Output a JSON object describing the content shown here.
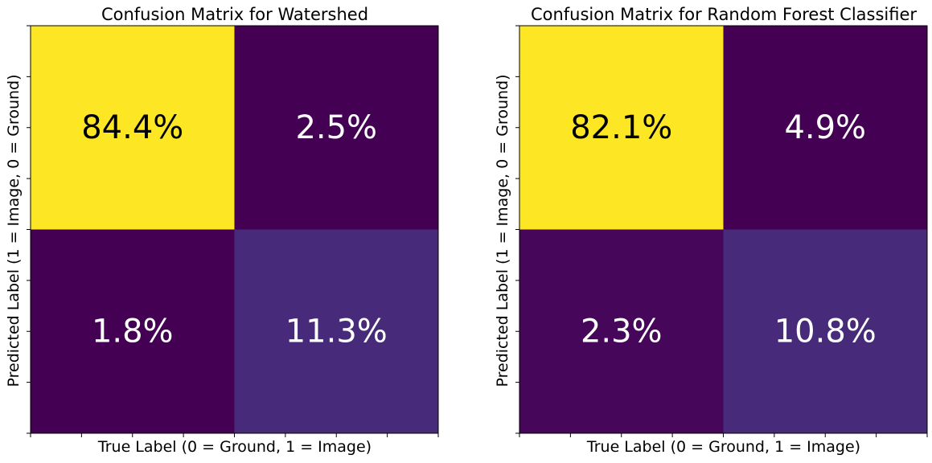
{
  "chart_data": [
    {
      "type": "heatmap",
      "title": "Confusion Matrix for Watershed",
      "xlabel": "True Label (0 = Ground, 1 = Image)",
      "ylabel": "Predicted Label (1 = Image, 0 = Ground)",
      "rows": 2,
      "cols": 2,
      "values": [
        [
          84.4,
          2.5
        ],
        [
          1.8,
          11.3
        ]
      ],
      "cell_labels": [
        [
          "84.4%",
          "2.5%"
        ],
        [
          "1.8%",
          "11.3%"
        ]
      ],
      "colormap": "viridis",
      "text_colors": [
        [
          "#000000",
          "#ffffff"
        ],
        [
          "#ffffff",
          "#ffffff"
        ]
      ],
      "cell_colors": [
        [
          "#fde725",
          "#440154"
        ],
        [
          "#440154",
          "#472a7a"
        ]
      ],
      "tick_labels_visible": false
    },
    {
      "type": "heatmap",
      "title": "Confusion Matrix for Random Forest Classifier",
      "xlabel": "True Label (0 = Ground, 1 = Image)",
      "ylabel": "Predicted Label (1 = Image, 0 = Ground)",
      "rows": 2,
      "cols": 2,
      "values": [
        [
          82.1,
          4.9
        ],
        [
          2.3,
          10.8
        ]
      ],
      "cell_labels": [
        [
          "82.1%",
          "4.9%"
        ],
        [
          "2.3%",
          "10.8%"
        ]
      ],
      "colormap": "viridis",
      "text_colors": [
        [
          "#000000",
          "#ffffff"
        ],
        [
          "#ffffff",
          "#ffffff"
        ]
      ],
      "cell_colors": [
        [
          "#fde725",
          "#440154"
        ],
        [
          "#46075a",
          "#472a7a"
        ]
      ],
      "tick_labels_visible": false
    }
  ]
}
